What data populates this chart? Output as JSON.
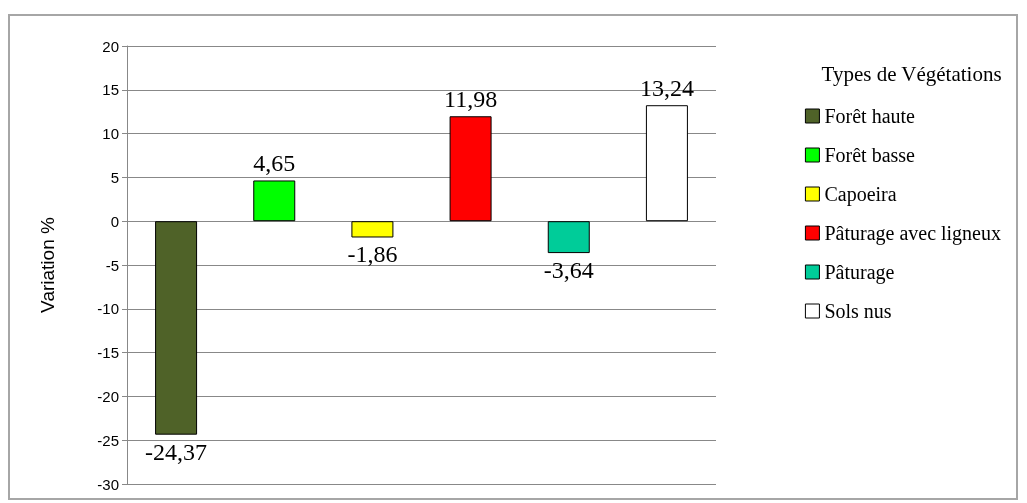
{
  "chart_data": {
    "type": "bar",
    "ylabel": "Variation %",
    "legend_title": "Types de Végétations",
    "categories": [
      null,
      null,
      null,
      null,
      null,
      null
    ],
    "series": [
      {
        "name": "Forêt haute",
        "color": "#4f6228",
        "values": [
          -24.37,
          null,
          null,
          null,
          null,
          null
        ],
        "value_labels": [
          "-24,37",
          null,
          null,
          null,
          null,
          null
        ]
      },
      {
        "name": "Forêt basse",
        "color": "#00ff00",
        "values": [
          null,
          4.65,
          null,
          null,
          null,
          null
        ],
        "value_labels": [
          null,
          "4,65",
          null,
          null,
          null,
          null
        ]
      },
      {
        "name": "Capoeira",
        "color": "#ffff00",
        "values": [
          null,
          null,
          -1.86,
          null,
          null,
          null
        ],
        "value_labels": [
          null,
          null,
          "-1,86",
          null,
          null,
          null
        ]
      },
      {
        "name": "Pâturage avec ligneux",
        "color": "#ff0000",
        "values": [
          null,
          null,
          null,
          11.98,
          null,
          null
        ],
        "value_labels": [
          null,
          null,
          null,
          "11,98",
          null,
          null
        ]
      },
      {
        "name": "Pâturage",
        "color": "#00cc99",
        "values": [
          null,
          null,
          null,
          null,
          -3.64,
          null
        ],
        "value_labels": [
          null,
          null,
          null,
          null,
          "-3,64",
          null
        ]
      },
      {
        "name": "Sols nus",
        "color": "#ffffff",
        "values": [
          null,
          null,
          null,
          null,
          null,
          13.24
        ],
        "value_labels": [
          null,
          null,
          null,
          null,
          null,
          "13,24"
        ]
      }
    ],
    "ylim": [
      -30,
      20
    ],
    "yticks": [
      -30,
      -25,
      -20,
      -15,
      -10,
      -5,
      0,
      5,
      10,
      15,
      20
    ],
    "grid": "y",
    "legend": "right"
  }
}
